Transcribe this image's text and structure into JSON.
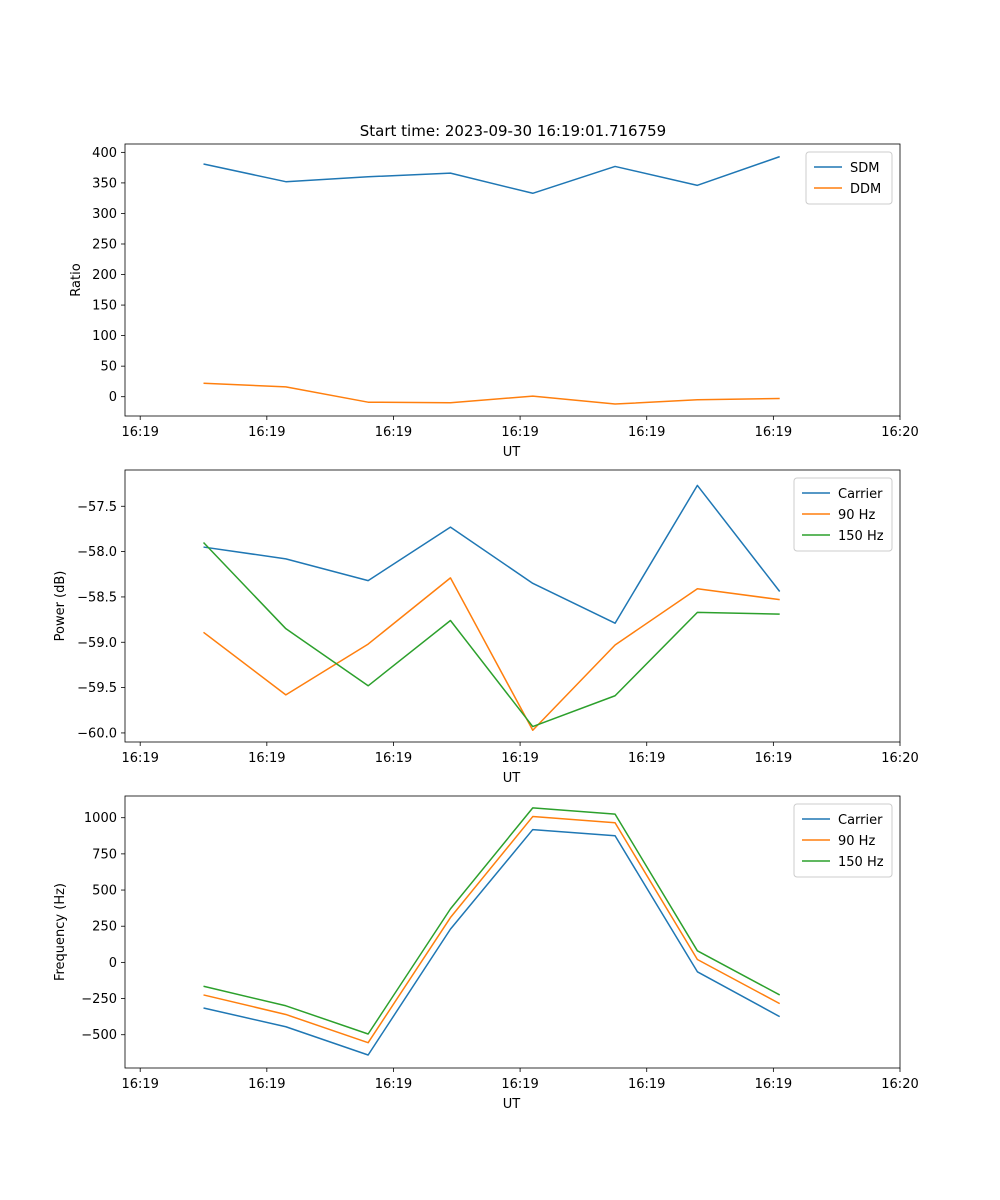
{
  "figure": {
    "title": "Start time: 2023-09-30 16:19:01.716759"
  },
  "chart_data": [
    {
      "id": "ratio",
      "type": "line",
      "xlabel": "UT",
      "ylabel": "Ratio",
      "x_ticks": [
        {
          "x": 0,
          "label": "16:19"
        },
        {
          "x": 1,
          "label": "16:19"
        },
        {
          "x": 2,
          "label": "16:19"
        },
        {
          "x": 3,
          "label": "16:19"
        },
        {
          "x": 4,
          "label": "16:19"
        },
        {
          "x": 5,
          "label": "16:19"
        },
        {
          "x": 6,
          "label": "16:20"
        }
      ],
      "xlim": [
        -0.12,
        6.0
      ],
      "y_ticks": [
        0,
        50,
        100,
        150,
        200,
        250,
        300,
        350,
        400
      ],
      "ylim": [
        -31.6,
        413.7
      ],
      "x": [
        0.5,
        1.15,
        1.8,
        2.45,
        3.1,
        3.75,
        4.4,
        5.05
      ],
      "series": [
        {
          "name": "SDM",
          "color": "#1f77b4",
          "values": [
            381,
            352,
            360,
            366,
            333,
            377,
            346,
            393
          ]
        },
        {
          "name": "DDM",
          "color": "#ff7f0e",
          "values": [
            22,
            16,
            -9,
            -10,
            1,
            -12,
            -5,
            -3
          ]
        }
      ],
      "legend": "top-right"
    },
    {
      "id": "power",
      "type": "line",
      "xlabel": "UT",
      "ylabel": "Power (dB)",
      "x_ticks": [
        {
          "x": 0,
          "label": "16:19"
        },
        {
          "x": 1,
          "label": "16:19"
        },
        {
          "x": 2,
          "label": "16:19"
        },
        {
          "x": 3,
          "label": "16:19"
        },
        {
          "x": 4,
          "label": "16:19"
        },
        {
          "x": 5,
          "label": "16:19"
        },
        {
          "x": 6,
          "label": "16:20"
        }
      ],
      "xlim": [
        -0.12,
        6.0
      ],
      "y_ticks": [
        -60.0,
        -59.5,
        -59.0,
        -58.5,
        -58.0,
        -57.5
      ],
      "y_tick_labels": [
        "−60.0",
        "−59.5",
        "−59.0",
        "−58.5",
        "−58.0",
        "−57.5"
      ],
      "ylim": [
        -60.1,
        -57.1
      ],
      "x": [
        0.5,
        1.15,
        1.8,
        2.45,
        3.1,
        3.75,
        4.4,
        5.05
      ],
      "series": [
        {
          "name": "Carrier",
          "color": "#1f77b4",
          "values": [
            -57.95,
            -58.08,
            -58.32,
            -57.73,
            -58.35,
            -58.79,
            -57.27,
            -58.44
          ]
        },
        {
          "name": "90 Hz",
          "color": "#ff7f0e",
          "values": [
            -58.89,
            -59.58,
            -59.02,
            -58.29,
            -59.97,
            -59.03,
            -58.41,
            -58.53
          ]
        },
        {
          "name": "150 Hz",
          "color": "#2ca02c",
          "values": [
            -57.9,
            -58.85,
            -59.48,
            -58.76,
            -59.93,
            -59.59,
            -58.67,
            -58.69
          ]
        }
      ],
      "legend": "top-right"
    },
    {
      "id": "frequency",
      "type": "line",
      "xlabel": "UT",
      "ylabel": "Frequency (Hz)",
      "x_ticks": [
        {
          "x": 0,
          "label": "16:19"
        },
        {
          "x": 1,
          "label": "16:19"
        },
        {
          "x": 2,
          "label": "16:19"
        },
        {
          "x": 3,
          "label": "16:19"
        },
        {
          "x": 4,
          "label": "16:19"
        },
        {
          "x": 5,
          "label": "16:19"
        },
        {
          "x": 6,
          "label": "16:20"
        }
      ],
      "xlim": [
        -0.12,
        6.0
      ],
      "y_ticks": [
        -500,
        -250,
        0,
        250,
        500,
        750,
        1000
      ],
      "y_tick_labels": [
        "−500",
        "−250",
        "0",
        "250",
        "500",
        "750",
        "1000"
      ],
      "ylim": [
        -730,
        1150
      ],
      "x": [
        0.5,
        1.15,
        1.8,
        2.45,
        3.1,
        3.75,
        4.4,
        5.05
      ],
      "series": [
        {
          "name": "Carrier",
          "color": "#1f77b4",
          "values": [
            -315,
            -445,
            -640,
            230,
            918,
            875,
            -65,
            -375
          ]
        },
        {
          "name": "90 Hz",
          "color": "#ff7f0e",
          "values": [
            -225,
            -360,
            -555,
            310,
            1008,
            965,
            20,
            -285
          ]
        },
        {
          "name": "150 Hz",
          "color": "#2ca02c",
          "values": [
            -165,
            -300,
            -495,
            370,
            1068,
            1025,
            80,
            -225
          ]
        }
      ],
      "legend": "top-right"
    }
  ]
}
